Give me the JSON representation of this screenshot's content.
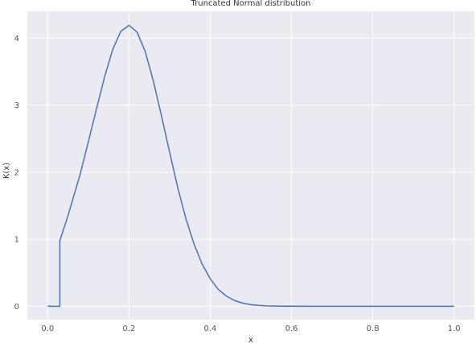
{
  "chart_data": {
    "type": "line",
    "title": "Truncated Normal distribution",
    "xlabel": "x",
    "ylabel": "K(x)",
    "xlim": [
      -0.05,
      1.05
    ],
    "ylim": [
      -0.2,
      4.4
    ],
    "xticks": [
      0.0,
      0.2,
      0.4,
      0.6,
      0.8,
      1.0
    ],
    "xtick_labels": [
      "0.0",
      "0.2",
      "0.4",
      "0.6",
      "0.8",
      "1.0"
    ],
    "yticks": [
      0,
      1,
      2,
      3,
      4
    ],
    "ytick_labels": [
      "0",
      "1",
      "2",
      "3",
      "4"
    ],
    "grid": true,
    "legend": "none",
    "colors": {
      "background": "#eaeaf2",
      "grid": "#ffffff",
      "line": "#4c72b0"
    },
    "series": [
      {
        "values_x": [
          0.0,
          0.03,
          0.03,
          0.05,
          0.08,
          0.1,
          0.12,
          0.14,
          0.16,
          0.18,
          0.2,
          0.22,
          0.24,
          0.26,
          0.28,
          0.3,
          0.32,
          0.34,
          0.36,
          0.38,
          0.4,
          0.42,
          0.44,
          0.46,
          0.48,
          0.5,
          0.52,
          0.54,
          0.56,
          0.58,
          0.6,
          0.65,
          0.7,
          0.8,
          0.9,
          1.0
        ],
        "values_y": [
          0.0,
          0.0,
          0.98,
          1.35,
          1.97,
          2.45,
          2.94,
          3.42,
          3.83,
          4.1,
          4.19,
          4.09,
          3.8,
          3.36,
          2.84,
          2.3,
          1.77,
          1.31,
          0.93,
          0.63,
          0.41,
          0.25,
          0.15,
          0.085,
          0.046,
          0.024,
          0.012,
          0.006,
          0.003,
          0.0012,
          0.0005,
          0.0001,
          0.0,
          0.0,
          0.0,
          0.0
        ]
      }
    ]
  }
}
